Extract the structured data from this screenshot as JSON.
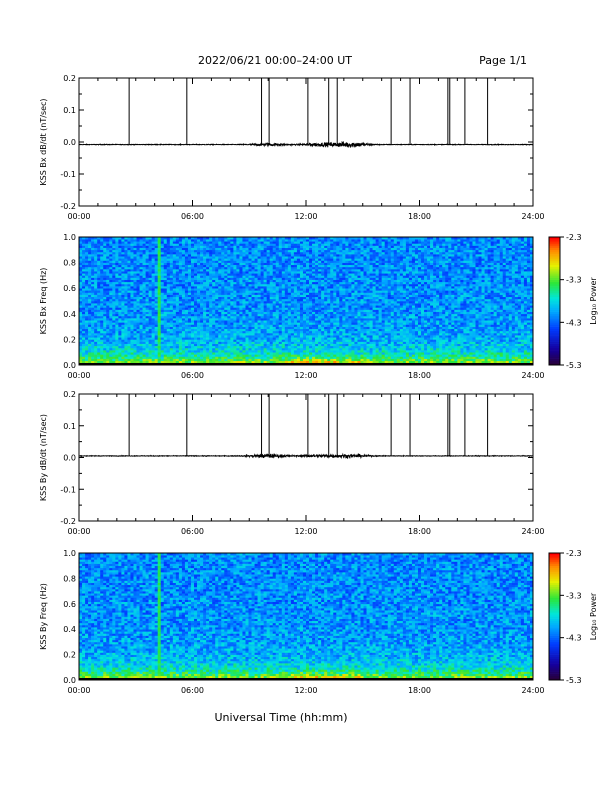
{
  "header": {
    "date_range": "2022/06/21  00:00–24:00 UT",
    "page": "Page 1/1"
  },
  "footer": {
    "xlabel": "Universal Time (hh:mm)"
  },
  "chart_data": [
    {
      "type": "line",
      "ylabel": "KSS Bx dB/dt (nT/sec)",
      "ylim": [
        -0.2,
        0.2
      ],
      "yticks": [
        "0.2",
        "0.1",
        "0.0",
        "-0.1",
        "-0.2"
      ],
      "xlim": [
        0,
        24
      ],
      "xticks": [
        "00:00",
        "06:00",
        "12:00",
        "18:00",
        "24:00"
      ],
      "baseline": -0.008,
      "spike_hours": [
        2.65,
        5.7,
        9.65,
        10.05,
        12.1,
        13.2,
        13.65,
        16.5,
        17.5,
        19.5,
        19.6,
        20.4,
        21.6
      ],
      "disturbance": [
        {
          "hour": 10.0,
          "amplitude": 0.007
        },
        {
          "hour": 12.7,
          "amplitude": 0.009
        },
        {
          "hour": 14.3,
          "amplitude": 0.014
        }
      ]
    },
    {
      "type": "heatmap",
      "ylabel": "KSS Bx Freq (Hz)",
      "ylim": [
        0,
        1
      ],
      "yticks": [
        "1.0",
        "0.8",
        "0.6",
        "0.4",
        "0.2",
        "0.0"
      ],
      "xlim": [
        0,
        24
      ],
      "xticks": [
        "00:00",
        "06:00",
        "12:00",
        "18:00",
        "24:00"
      ],
      "colorbar": {
        "label": "Log₁₀ Power",
        "ticks": [
          "-2.3",
          "-3.3",
          "-4.3",
          "-5.3"
        ],
        "range": [
          -5.3,
          -2.3
        ]
      },
      "green_line_hour": 4.2,
      "enhanced_power": {
        "hour_start": 10.5,
        "hour_end": 15.0,
        "freq_max": 0.05
      }
    },
    {
      "type": "line",
      "ylabel": "KSS By dB/dt (nT/sec)",
      "ylim": [
        -0.2,
        0.2
      ],
      "yticks": [
        "0.2",
        "0.1",
        "0.0",
        "-0.1",
        "-0.2"
      ],
      "xlim": [
        0,
        24
      ],
      "xticks": [
        "00:00",
        "06:00",
        "12:00",
        "18:00",
        "24:00"
      ],
      "baseline": 0.005,
      "spike_hours": [
        2.65,
        5.7,
        9.65,
        10.05,
        12.1,
        13.2,
        13.65,
        16.5,
        17.5,
        19.5,
        19.6,
        20.4,
        21.6
      ],
      "disturbance": [
        {
          "hour": 10.0,
          "amplitude": 0.011
        },
        {
          "hour": 12.7,
          "amplitude": 0.007
        },
        {
          "hour": 14.3,
          "amplitude": 0.009
        }
      ]
    },
    {
      "type": "heatmap",
      "ylabel": "KSS By Freq (Hz)",
      "ylim": [
        0,
        1
      ],
      "yticks": [
        "1.0",
        "0.8",
        "0.6",
        "0.4",
        "0.2",
        "0.0"
      ],
      "xlim": [
        0,
        24
      ],
      "xticks": [
        "00:00",
        "06:00",
        "12:00",
        "18:00",
        "24:00"
      ],
      "colorbar": {
        "label": "Log₁₀ Power",
        "ticks": [
          "-2.3",
          "-3.3",
          "-4.3",
          "-5.3"
        ],
        "range": [
          -5.3,
          -2.3
        ]
      },
      "green_line_hour": 4.2,
      "enhanced_power": {
        "hour_start": 10.5,
        "hour_end": 15.0,
        "freq_max": 0.04
      }
    }
  ]
}
